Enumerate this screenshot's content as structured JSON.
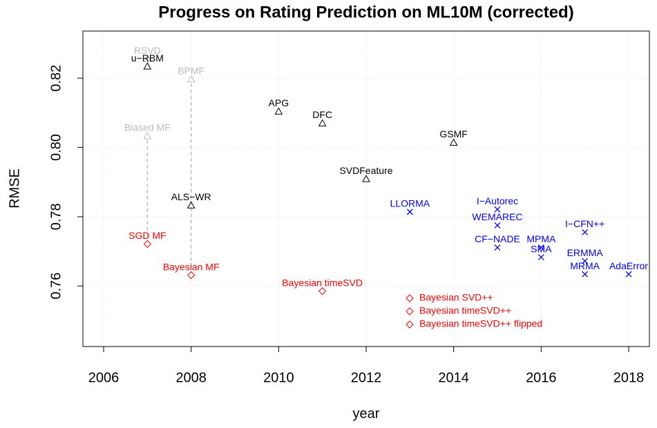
{
  "chart_data": {
    "type": "scatter",
    "title": "Progress on Rating Prediction on ML10M  (corrected)",
    "x_label": "year",
    "y_label": "RMSE",
    "xlim": [
      2005.526,
      2018.474
    ],
    "ylim": [
      0.7425,
      0.8336
    ],
    "xticks": [
      2006,
      2008,
      2010,
      2012,
      2014,
      2016,
      2018
    ],
    "yticks": [
      0.76,
      0.78,
      {
        "value": 0.8,
        "label": "0.80"
      },
      0.82
    ],
    "grid": true,
    "points": [
      {
        "label": "RSVD",
        "x": 2007,
        "y": 0.8256,
        "color": "#bbbbbb",
        "marker": "triangle"
      },
      {
        "label": "u−RBM",
        "x": 2007,
        "y": 0.8234,
        "color": "#000000",
        "marker": "triangle"
      },
      {
        "label": "BPMF",
        "x": 2008,
        "y": 0.8197,
        "color": "#bbbbbb",
        "marker": "triangle"
      },
      {
        "label": "Biased MF",
        "x": 2007,
        "y": 0.8033,
        "color": "#bbbbbb",
        "marker": "triangle"
      },
      {
        "label": "APG",
        "x": 2010,
        "y": 0.8104,
        "color": "#000000",
        "marker": "triangle"
      },
      {
        "label": "DFC",
        "x": 2011,
        "y": 0.807,
        "color": "#000000",
        "marker": "triangle"
      },
      {
        "label": "GSMF",
        "x": 2014,
        "y": 0.8014,
        "color": "#000000",
        "marker": "triangle"
      },
      {
        "label": "SVDFeature",
        "x": 2012,
        "y": 0.7909,
        "color": "#000000",
        "marker": "triangle"
      },
      {
        "label": "ALS−WR",
        "x": 2008,
        "y": 0.7833,
        "color": "#000000",
        "marker": "triangle"
      },
      {
        "label": "SGD MF",
        "x": 2007,
        "y": 0.7721,
        "color": "#ff0000",
        "marker": "diamond"
      },
      {
        "label": "Bayesian MF",
        "x": 2008,
        "y": 0.7631,
        "color": "#ff0000",
        "marker": "diamond"
      },
      {
        "label": "Bayesian timeSVD",
        "x": 2011,
        "y": 0.7585,
        "color": "#ff0000",
        "marker": "diamond"
      },
      {
        "label": "LLORMA",
        "x": 2013,
        "y": 0.7814,
        "color": "#0000ff",
        "marker": "cross"
      },
      {
        "label": "I−Autorec",
        "x": 2015,
        "y": 0.7821,
        "color": "#0000ff",
        "marker": "cross"
      },
      {
        "label": "WEMAREC",
        "x": 2015,
        "y": 0.7775,
        "color": "#0000ff",
        "marker": "cross"
      },
      {
        "label": "CF−NADE",
        "x": 2015,
        "y": 0.7711,
        "color": "#0000ff",
        "marker": "cross"
      },
      {
        "label": "MPMA",
        "x": 2016,
        "y": 0.7711,
        "color": "#0000ff",
        "marker": "cross"
      },
      {
        "label": "SMA",
        "x": 2016,
        "y": 0.7683,
        "color": "#0000ff",
        "marker": "cross"
      },
      {
        "label": "I−CFN++",
        "x": 2017,
        "y": 0.7755,
        "color": "#0000ff",
        "marker": "cross"
      },
      {
        "label": "ERMMA",
        "x": 2017,
        "y": 0.7672,
        "color": "#0000ff",
        "marker": "cross"
      },
      {
        "label": "MRMA",
        "x": 2017,
        "y": 0.7634,
        "color": "#0000ff",
        "marker": "cross"
      },
      {
        "label": "AdaError",
        "x": 2018,
        "y": 0.7634,
        "color": "#0000ff",
        "marker": "cross"
      }
    ],
    "legend": [
      {
        "name": "Bayesian SVD++",
        "color": "#ff0000",
        "marker": "diamond"
      },
      {
        "name": "Bayesian timeSVD++",
        "color": "#ff0000",
        "marker": "diamond"
      },
      {
        "name": "Bayesian timeSVD++ flipped",
        "color": "#ff0000",
        "marker": "diamond"
      }
    ]
  }
}
